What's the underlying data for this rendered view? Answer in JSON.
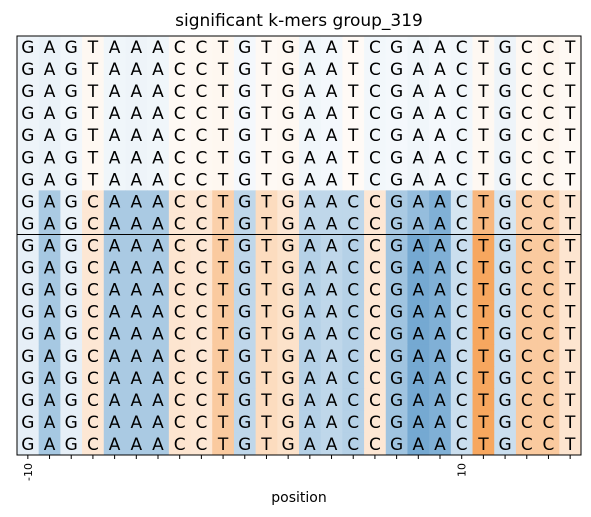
{
  "chart_data": {
    "type": "heatmap",
    "title": "significant k-mers group_319",
    "xlabel": "position",
    "ylabel": "",
    "x_start": -10,
    "x_ticks": [
      {
        "value": -10,
        "label": "-10"
      },
      {
        "value": 10,
        "label": "10"
      }
    ],
    "separator_after_row": 9,
    "sequences": [
      "GAGTAAACCTGTGAATCGAACTGCCT",
      "GAGTAAACCTGTGAATCGAACTGCCT",
      "GAGTAAACCTGTGAATCGAACTGCCT",
      "GAGTAAACCTGTGAATCGAACTGCCT",
      "GAGTAAACCTGTGAATCGAACTGCCT",
      "GAGTAAACCTGTGAATCGAACTGCCT",
      "GAGTAAACCTGTGAATCGAACTGCCT",
      "GAGCAAACCTGTGAACCGAACTGCCT",
      "GAGCAAACCTGTGAACCGAACTGCCT",
      "GAGCAAACCTGTGAACCGAACTGCCT",
      "GAGCAAACCTGTGAACCGAACTGCCT",
      "GAGCAAACCTGTGAACCGAACTGCCT",
      "GAGCAAACCTGTGAACCGAACTGCCT",
      "GAGCAAACCTGTGAACCGAACTGCCT",
      "GAGCAAACCTGTGAACCGAACTGCCT",
      "GAGCAAACCTGTGAACCGAACTGCCT",
      "GAGCAAACCTGTGAACCGAACTGCCT",
      "GAGCAAACCTGTGAACCGAACTGCCT",
      "GAGCAAACCTGTGAACCGAACTGCCT"
    ],
    "colormap": {
      "negative": "#2b7bba",
      "neutral": "#ffffff",
      "positive": "#f4892a"
    },
    "row_groups": [
      {
        "rows": [
          0,
          6
        ],
        "values": [
          -0.08,
          -0.1,
          -0.06,
          0.06,
          -0.07,
          -0.08,
          -0.07,
          0.05,
          0.06,
          0.07,
          -0.05,
          0.05,
          0.06,
          -0.07,
          -0.05,
          0.04,
          -0.06,
          -0.05,
          -0.07,
          -0.05,
          -0.06,
          0.06,
          -0.08,
          0.06,
          0.08,
          0.05
        ]
      },
      {
        "rows": [
          7,
          8
        ],
        "values": [
          -0.1,
          -0.4,
          -0.1,
          0.2,
          -0.4,
          -0.4,
          -0.4,
          0.2,
          0.2,
          0.4,
          -0.3,
          0.3,
          0.2,
          -0.3,
          -0.3,
          -0.3,
          0.2,
          -0.4,
          -0.5,
          -0.6,
          -0.2,
          0.6,
          -0.2,
          0.4,
          0.4,
          0.2
        ]
      },
      {
        "rows": [
          9,
          18
        ],
        "values": [
          -0.12,
          -0.42,
          -0.12,
          0.2,
          -0.4,
          -0.4,
          -0.4,
          0.22,
          0.2,
          0.45,
          -0.3,
          0.3,
          0.25,
          -0.35,
          -0.3,
          -0.35,
          0.2,
          -0.45,
          -0.65,
          -0.6,
          -0.25,
          0.75,
          -0.25,
          0.45,
          0.45,
          0.22
        ]
      }
    ]
  }
}
